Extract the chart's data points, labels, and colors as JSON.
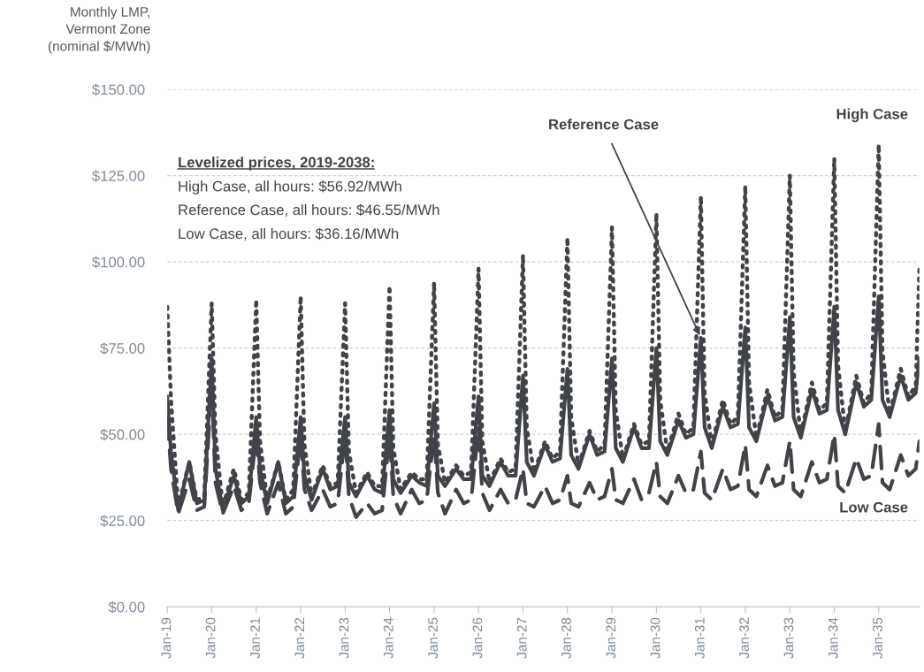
{
  "chart_data": {
    "type": "line",
    "ylabel": "Monthly LMP,\nVermont Zone\n(nominal $/MWh)",
    "x": [
      "2019-01",
      "2019-02",
      "2019-04",
      "2019-07",
      "2019-09",
      "2019-11",
      "2020-01",
      "2020-02",
      "2020-04",
      "2020-07",
      "2020-09",
      "2020-11",
      "2021-01",
      "2021-02",
      "2021-04",
      "2021-07",
      "2021-09",
      "2021-11",
      "2022-01",
      "2022-02",
      "2022-04",
      "2022-07",
      "2022-09",
      "2022-11",
      "2023-01",
      "2023-02",
      "2023-04",
      "2023-07",
      "2023-09",
      "2023-11",
      "2024-01",
      "2024-02",
      "2024-04",
      "2024-07",
      "2024-09",
      "2024-11",
      "2025-01",
      "2025-02",
      "2025-04",
      "2025-07",
      "2025-09",
      "2025-11",
      "2026-01",
      "2026-02",
      "2026-04",
      "2026-07",
      "2026-09",
      "2026-11",
      "2027-01",
      "2027-02",
      "2027-04",
      "2027-07",
      "2027-09",
      "2027-11",
      "2028-01",
      "2028-02",
      "2028-04",
      "2028-07",
      "2028-09",
      "2028-11",
      "2029-01",
      "2029-02",
      "2029-04",
      "2029-07",
      "2029-09",
      "2029-11",
      "2030-01",
      "2030-02",
      "2030-04",
      "2030-07",
      "2030-09",
      "2030-11",
      "2031-01",
      "2031-02",
      "2031-04",
      "2031-07",
      "2031-09",
      "2031-11",
      "2032-01",
      "2032-02",
      "2032-04",
      "2032-07",
      "2032-09",
      "2032-11",
      "2033-01",
      "2033-02",
      "2033-04",
      "2033-07",
      "2033-09",
      "2033-11",
      "2034-01",
      "2034-02",
      "2034-04",
      "2034-07",
      "2034-09",
      "2034-11",
      "2035-01",
      "2035-02",
      "2035-04",
      "2035-07",
      "2035-09",
      "2035-11",
      "2035-12"
    ],
    "series": [
      {
        "name": "High Case",
        "color": "#404449",
        "line_style": "dotted",
        "values": [
          87,
          60,
          29,
          42,
          31,
          32,
          88,
          50,
          29,
          40,
          31,
          33,
          89,
          48,
          31,
          42,
          31,
          34,
          90,
          47,
          32,
          41,
          35,
          36,
          88,
          45,
          33,
          39,
          35,
          35,
          93,
          46,
          34,
          39,
          37,
          37,
          94,
          47,
          36,
          41,
          38,
          39,
          98,
          48,
          36,
          43,
          39,
          40,
          102,
          52,
          39,
          48,
          43,
          45,
          107,
          55,
          41,
          51,
          45,
          47,
          110,
          57,
          43,
          53,
          47,
          48,
          114,
          60,
          45,
          56,
          50,
          52,
          119,
          62,
          47,
          60,
          53,
          55,
          122,
          65,
          49,
          63,
          55,
          57,
          125,
          68,
          50,
          65,
          57,
          59,
          130,
          70,
          51,
          67,
          59,
          62,
          134,
          74,
          56,
          69,
          61,
          64,
          98
        ]
      },
      {
        "name": "Reference Case",
        "color": "#404449",
        "line_style": "solid",
        "values": [
          61,
          45,
          28,
          42,
          30,
          31,
          72,
          40,
          28,
          38,
          30,
          32,
          55,
          40,
          30,
          42,
          30,
          32,
          55,
          38,
          31,
          40,
          34,
          35,
          55,
          36,
          32,
          38,
          34,
          33,
          57,
          37,
          33,
          38,
          36,
          35,
          59,
          38,
          35,
          40,
          37,
          37,
          61,
          38,
          35,
          42,
          38,
          38,
          67,
          42,
          38,
          47,
          42,
          43,
          69,
          44,
          40,
          50,
          44,
          45,
          72,
          46,
          42,
          52,
          46,
          46,
          75,
          48,
          44,
          54,
          49,
          50,
          78,
          52,
          46,
          58,
          52,
          53,
          81,
          52,
          48,
          61,
          54,
          55,
          84,
          55,
          49,
          63,
          56,
          57,
          87,
          57,
          50,
          65,
          58,
          60,
          90,
          60,
          55,
          67,
          60,
          62,
          72
        ]
      },
      {
        "name": "Low Case",
        "color": "#404449",
        "line_style": "dashed",
        "values": [
          55,
          40,
          27,
          37,
          28,
          29,
          65,
          36,
          27,
          35,
          28,
          30,
          50,
          36,
          27,
          36,
          27,
          29,
          50,
          34,
          28,
          34,
          29,
          30,
          50,
          32,
          26,
          30,
          27,
          28,
          50,
          32,
          27,
          34,
          30,
          31,
          50,
          33,
          27,
          34,
          30,
          31,
          52,
          33,
          28,
          34,
          30,
          31,
          40,
          30,
          29,
          35,
          30,
          31,
          38,
          30,
          29,
          36,
          31,
          32,
          40,
          31,
          30,
          37,
          31,
          33,
          42,
          32,
          30,
          38,
          33,
          34,
          45,
          33,
          31,
          40,
          34,
          35,
          47,
          34,
          32,
          41,
          35,
          36,
          48,
          34,
          32,
          42,
          36,
          37,
          50,
          35,
          33,
          43,
          37,
          38,
          53,
          36,
          34,
          44,
          38,
          40,
          48
        ]
      }
    ],
    "xlim": [
      "2019-01",
      "2035-12"
    ],
    "xticks": [
      {
        "value": "2019-01",
        "label": "Jan-19"
      },
      {
        "value": "2020-01",
        "label": "Jan-20"
      },
      {
        "value": "2021-01",
        "label": "Jan-21"
      },
      {
        "value": "2022-01",
        "label": "Jan-22"
      },
      {
        "value": "2023-01",
        "label": "Jan-23"
      },
      {
        "value": "2024-01",
        "label": "Jan-24"
      },
      {
        "value": "2025-01",
        "label": "Jan-25"
      },
      {
        "value": "2026-01",
        "label": "Jan-26"
      },
      {
        "value": "2027-01",
        "label": "Jan-27"
      },
      {
        "value": "2028-01",
        "label": "Jan-28"
      },
      {
        "value": "2029-01",
        "label": "Jan-29"
      },
      {
        "value": "2030-01",
        "label": "Jan-30"
      },
      {
        "value": "2031-01",
        "label": "Jan-31"
      },
      {
        "value": "2032-01",
        "label": "Jan-32"
      },
      {
        "value": "2033-01",
        "label": "Jan-33"
      },
      {
        "value": "2034-01",
        "label": "Jan-34"
      },
      {
        "value": "2035-01",
        "label": "Jan-35"
      }
    ],
    "ylim": [
      0,
      150
    ],
    "yticks": [
      {
        "value": 0,
        "label": "$0.00"
      },
      {
        "value": 25,
        "label": "$25.00"
      },
      {
        "value": 50,
        "label": "$50.00"
      },
      {
        "value": 75,
        "label": "$75.00"
      },
      {
        "value": 100,
        "label": "$100.00"
      },
      {
        "value": 125,
        "label": "$125.00"
      },
      {
        "value": 150,
        "label": "$150.00"
      }
    ],
    "grid": "y",
    "legend": false,
    "marker": "none",
    "annotations": [
      "Levelized prices, 2019-2038:",
      "High Case, all hours: $56.92/MWh",
      "Reference Case, all hours: $46.55/MWh",
      "Low Case, all hours: $36.16/MWh"
    ]
  }
}
